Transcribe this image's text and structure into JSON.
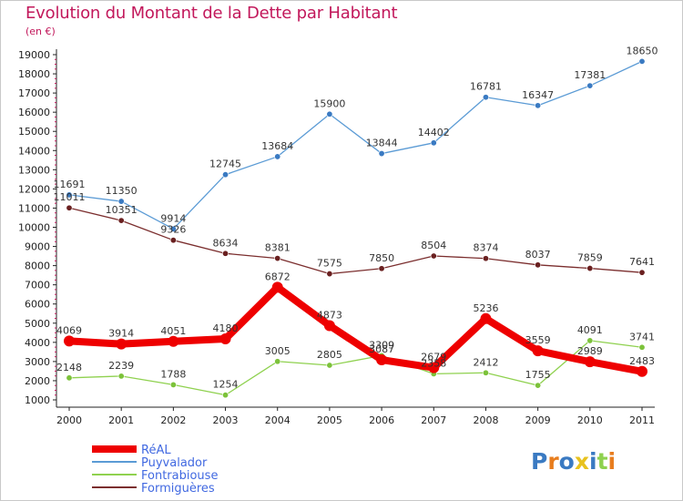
{
  "chart_data": {
    "type": "line",
    "title": "Evolution du Montant de la Dette par Habitant",
    "subtitle": "(en €)",
    "xlabel": "",
    "ylabel": "",
    "categories": [
      "2000",
      "2001",
      "2002",
      "2003",
      "2004",
      "2005",
      "2006",
      "2007",
      "2008",
      "2009",
      "2010",
      "2011"
    ],
    "yticks": [
      "1000",
      "2000",
      "3000",
      "4000",
      "5000",
      "6000",
      "7000",
      "8000",
      "9000",
      "10000",
      "11000",
      "12000",
      "13000",
      "14000",
      "15000",
      "16000",
      "17000",
      "18000",
      "19000"
    ],
    "ylim": [
      1000,
      19000
    ],
    "grid": false,
    "legend_position": "bottom-left",
    "series": [
      {
        "name": "Puyvalador",
        "color": "#5b9bd5",
        "marker": "#3a7ac2",
        "values": [
          11691,
          11350,
          9914,
          12745,
          13684,
          15900,
          13844,
          14402,
          16781,
          16347,
          17381,
          18650
        ],
        "labels": [
          "11691",
          "11350",
          "9914",
          "12745",
          "13684",
          "15900",
          "13844",
          "14402",
          "16781",
          "16347",
          "17381",
          "18650"
        ]
      },
      {
        "name": "Formiguères",
        "color": "#7b2e2e",
        "marker": "#6a2020",
        "values": [
          11011,
          10351,
          9326,
          8634,
          8381,
          7575,
          7850,
          8504,
          8374,
          8037,
          7859,
          7641
        ],
        "labels": [
          "11011",
          "10351",
          "9326",
          "8634",
          "8381",
          "7575",
          "7850",
          "8504",
          "8374",
          "8037",
          "7859",
          "7641"
        ]
      },
      {
        "name": "Fontrabiouse",
        "color": "#8fd14f",
        "marker": "#7cc23a",
        "values": [
          2148,
          2239,
          1788,
          1254,
          3005,
          2805,
          3309,
          2358,
          2412,
          1755,
          4091,
          3741
        ],
        "labels": [
          "2148",
          "2239",
          "1788",
          "1254",
          "3005",
          "2805",
          "3309",
          "2358",
          "2412",
          "1755",
          "4091",
          "3741"
        ]
      },
      {
        "name": "RéAL",
        "color": "#ee0000",
        "marker": "#ee0000",
        "values": [
          4069,
          3914,
          4051,
          4180,
          6872,
          4873,
          3087,
          2679,
          5236,
          3559,
          2989,
          2483
        ],
        "labels": [
          "4069",
          "3914",
          "4051",
          "4180",
          "6872",
          "4873",
          "3087",
          "2679",
          "5236",
          "3559",
          "2989",
          "2483"
        ]
      }
    ],
    "legend": [
      {
        "name": "RéAL",
        "color": "#ee0000",
        "text_color": "#4169e1"
      },
      {
        "name": "Puyvalador",
        "color": "#5b9bd5",
        "text_color": "#4169e1"
      },
      {
        "name": "Fontrabiouse",
        "color": "#8fd14f",
        "text_color": "#4169e1"
      },
      {
        "name": "Formiguères",
        "color": "#7b2e2e",
        "text_color": "#4169e1"
      }
    ]
  },
  "logo": {
    "text": "Proxiti"
  }
}
